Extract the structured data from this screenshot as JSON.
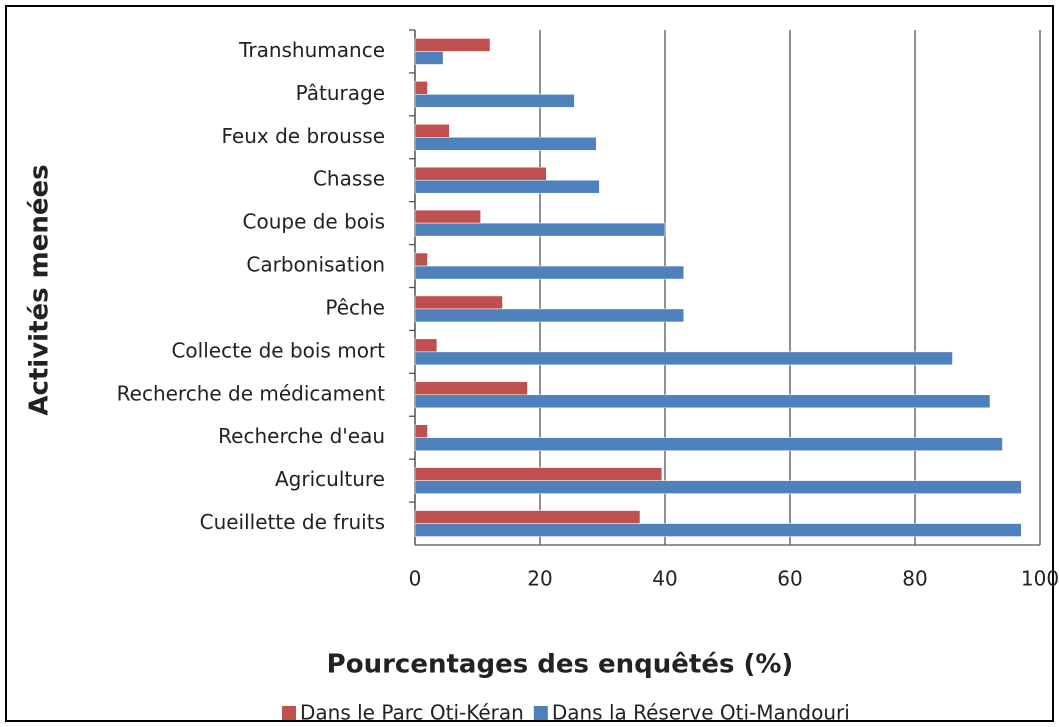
{
  "chart_data": {
    "type": "barh",
    "xlabel": "Pourcentages des enquêtés (%)",
    "ylabel": "Activités menées",
    "categories": [
      "Transhumance",
      "Pâturage",
      "Feux de brousse",
      "Chasse",
      "Coupe de bois",
      "Carbonisation",
      "Pêche",
      "Collecte de bois mort",
      "Recherche de médicament",
      "Recherche d'eau",
      "Agriculture",
      "Cueillette de fruits"
    ],
    "series": [
      {
        "name": "Dans le Parc Oti-Kéran",
        "color": "#c0504d",
        "values": [
          12,
          2,
          5.5,
          21,
          10.5,
          2,
          14,
          3.5,
          18,
          2,
          39.5,
          36
        ]
      },
      {
        "name": "Dans la Réserve Oti-Mandouri",
        "color": "#4f81bd",
        "values": [
          4.5,
          25.5,
          29,
          29.5,
          40,
          43,
          43,
          86,
          92,
          94,
          97,
          97
        ]
      }
    ],
    "xlim": [
      0,
      100
    ],
    "xticks": [
      0,
      20,
      40,
      60,
      80,
      100
    ],
    "grid": true,
    "legend": "bottom"
  }
}
